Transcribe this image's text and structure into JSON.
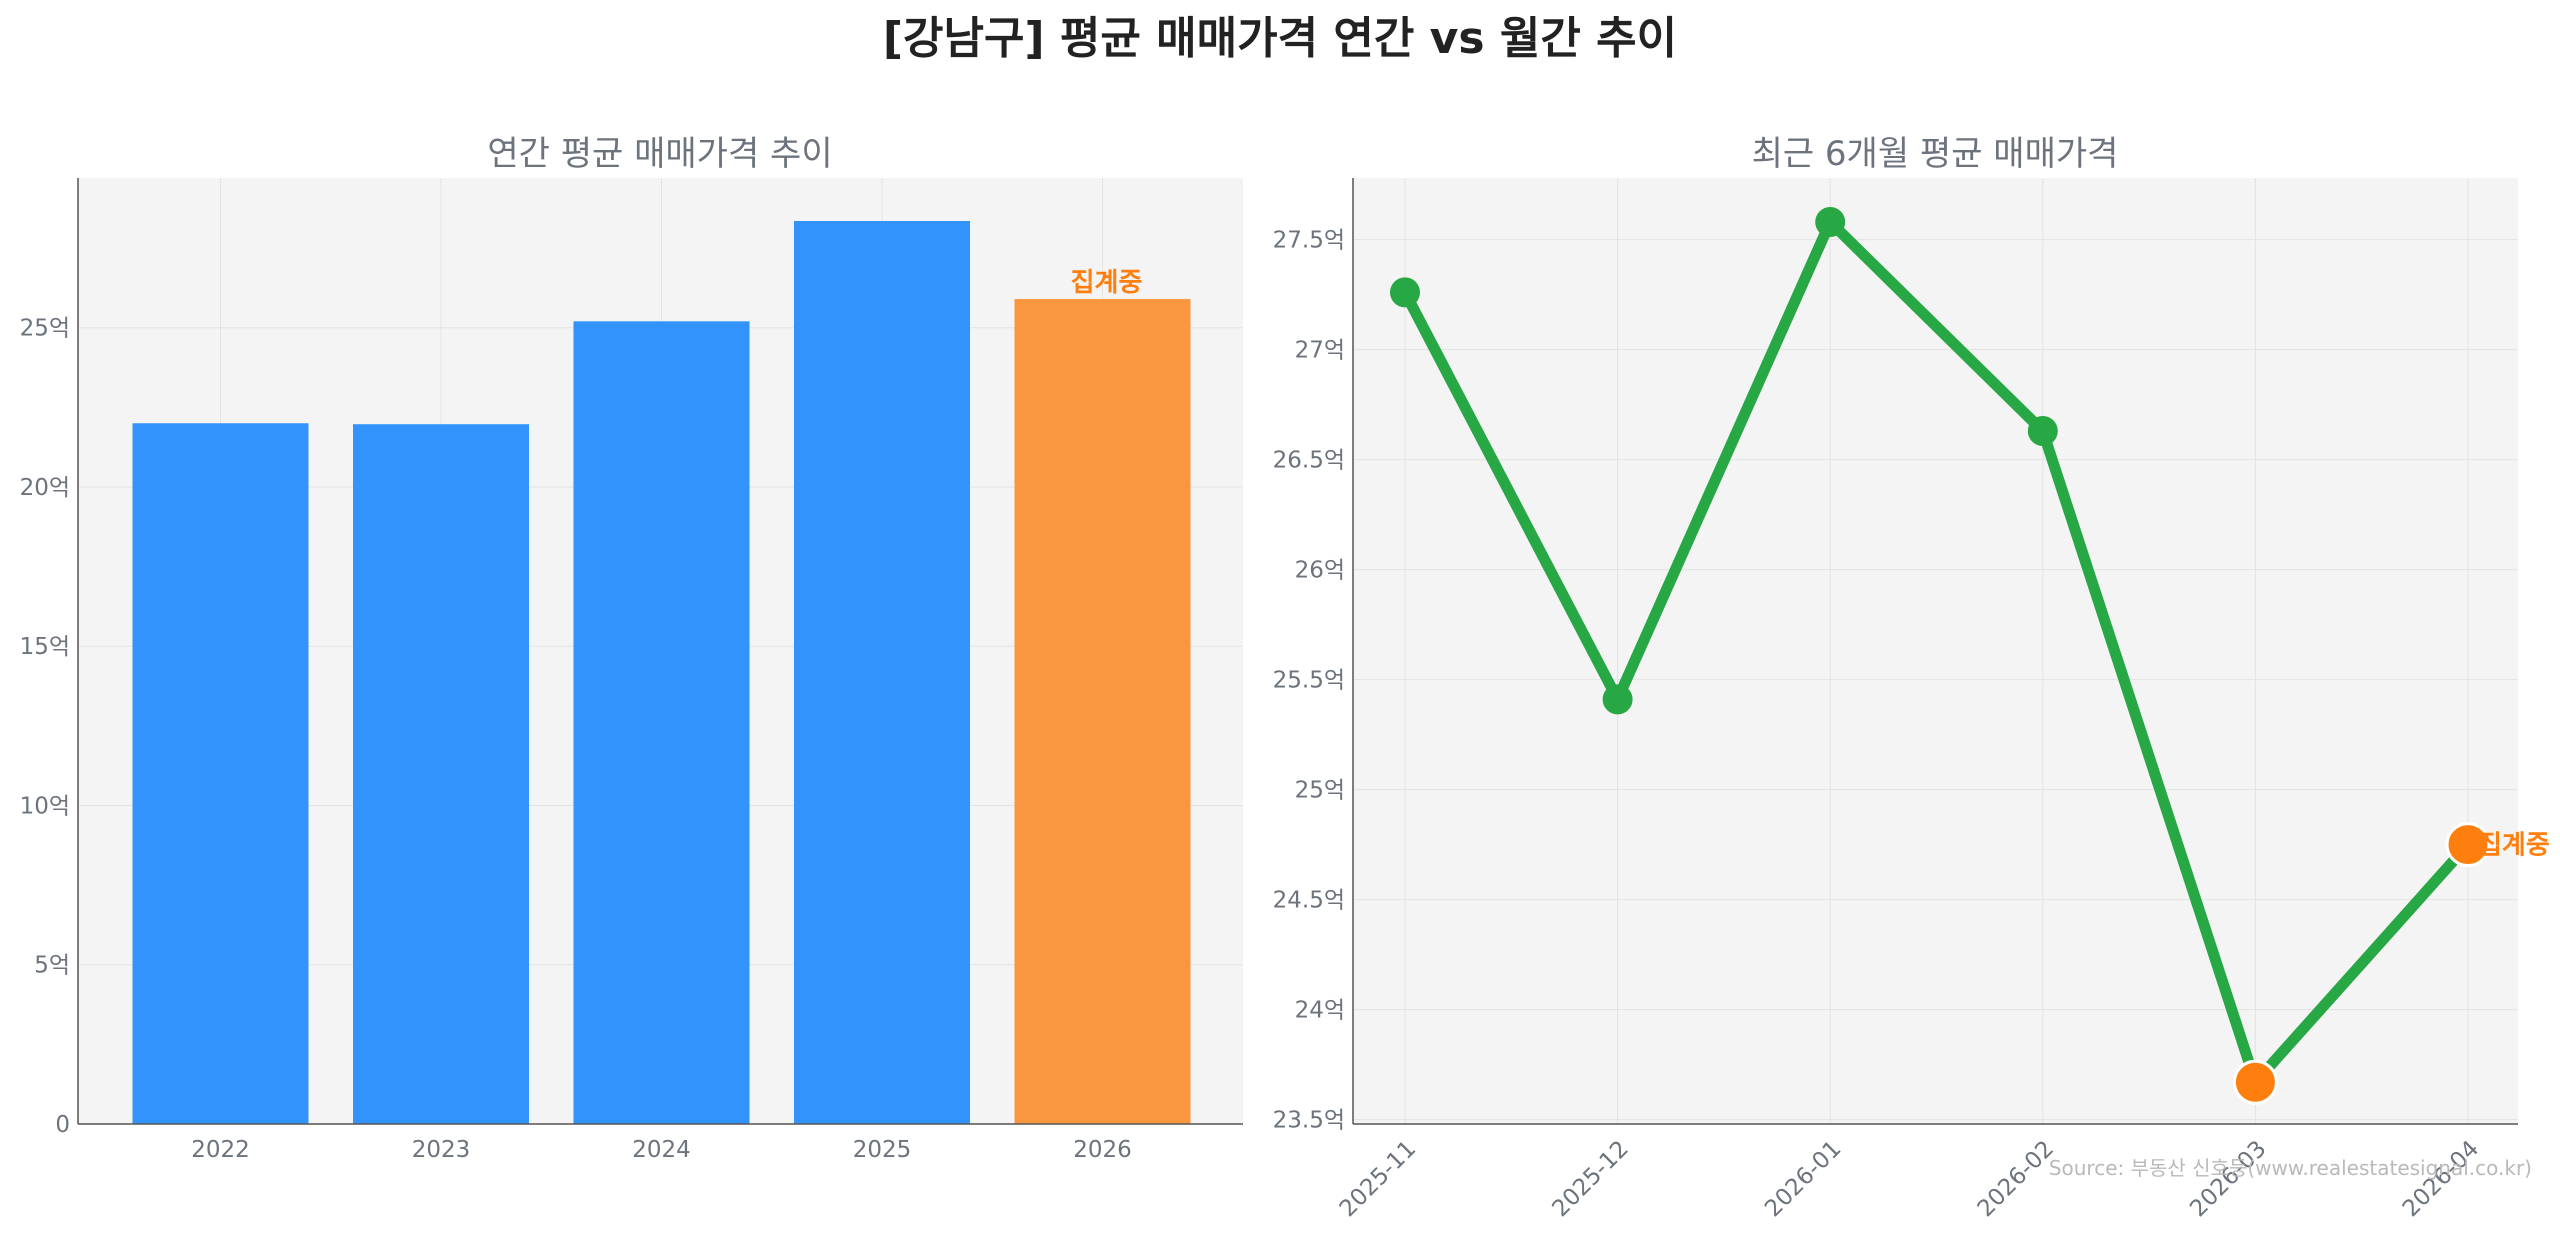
{
  "title": "[강남구] 평균 매매가격 연간 vs 월간 추이",
  "source": "Source: 부동산 신호등(www.realestatesignal.co.kr)",
  "colors": {
    "bar": "#3193fb",
    "bar_highlight": "#f99740",
    "line": "#28a745",
    "point": "#28a745",
    "point_highlight": "#ff7f0e",
    "annotation": "#ff7f0e",
    "panel_bg": "#f4f4f4"
  },
  "chart_data": [
    {
      "type": "bar",
      "title": "연간 평균 매매가격 추이",
      "categories": [
        "2022",
        "2023",
        "2024",
        "2025",
        "2026"
      ],
      "values": [
        22.0,
        21.97,
        25.2,
        28.35,
        25.9
      ],
      "highlight_index": 4,
      "annotation": "집계중",
      "xlabel": "",
      "ylabel": "",
      "ylim": [
        0,
        29.7
      ],
      "yticks": [
        0,
        5,
        10,
        15,
        20,
        25
      ],
      "ytick_labels": [
        "0",
        "5억",
        "10억",
        "15억",
        "20억",
        "25억"
      ],
      "grid": true
    },
    {
      "type": "line",
      "title": "최근 6개월 평균 매매가격",
      "x": [
        "2025-11",
        "2025-12",
        "2026-01",
        "2026-02",
        "2026-03",
        "2026-04"
      ],
      "values": [
        27.26,
        25.41,
        27.58,
        26.63,
        23.67,
        24.75
      ],
      "highlight_indices": [
        4,
        5
      ],
      "annotation": "집계중",
      "xlabel": "",
      "ylabel": "",
      "ylim": [
        23.48,
        27.78
      ],
      "yticks": [
        23.5,
        24,
        24.5,
        25,
        25.5,
        26,
        26.5,
        27,
        27.5
      ],
      "ytick_labels": [
        "23.5억",
        "24억",
        "24.5억",
        "25억",
        "25.5억",
        "26억",
        "26.5억",
        "27억",
        "27.5억"
      ],
      "grid": true
    }
  ]
}
